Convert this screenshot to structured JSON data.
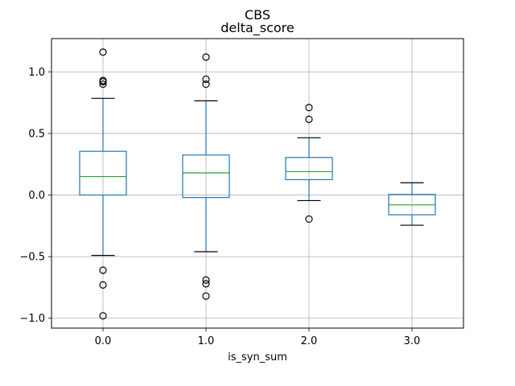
{
  "chart_data": {
    "type": "box",
    "suptitle": "CBS",
    "title": "delta_score",
    "xlabel": "is_syn_sum",
    "ylabel": "",
    "categories": [
      "0.0",
      "1.0",
      "2.0",
      "3.0"
    ],
    "ylim": [
      -1.08,
      1.27
    ],
    "yticks": [
      -1.0,
      -0.5,
      0.0,
      0.5,
      1.0
    ],
    "ytick_labels": [
      "−1.0",
      "−0.5",
      "0.0",
      "0.5",
      "1.0"
    ],
    "grid": true,
    "colors": {
      "box": "#1f77b4",
      "median": "#2ca02c",
      "grid": "#b0b0b0",
      "axes": "#000000"
    },
    "boxes": [
      {
        "category": "0.0",
        "whisker_low": -0.49,
        "q1": 0.0,
        "median": 0.15,
        "q3": 0.355,
        "whisker_high": 0.785,
        "outliers": [
          1.16,
          0.93,
          0.92,
          0.9,
          -0.61,
          -0.73,
          -0.98
        ]
      },
      {
        "category": "1.0",
        "whisker_low": -0.46,
        "q1": -0.02,
        "median": 0.18,
        "q3": 0.325,
        "whisker_high": 0.765,
        "outliers": [
          1.12,
          0.94,
          0.9,
          -0.69,
          -0.72,
          -0.82
        ]
      },
      {
        "category": "2.0",
        "whisker_low": -0.045,
        "q1": 0.125,
        "median": 0.19,
        "q3": 0.305,
        "whisker_high": 0.465,
        "outliers": [
          0.71,
          0.615,
          -0.195
        ]
      },
      {
        "category": "3.0",
        "whisker_low": -0.245,
        "q1": -0.16,
        "median": -0.08,
        "q3": 0.005,
        "whisker_high": 0.1,
        "outliers": []
      }
    ]
  }
}
